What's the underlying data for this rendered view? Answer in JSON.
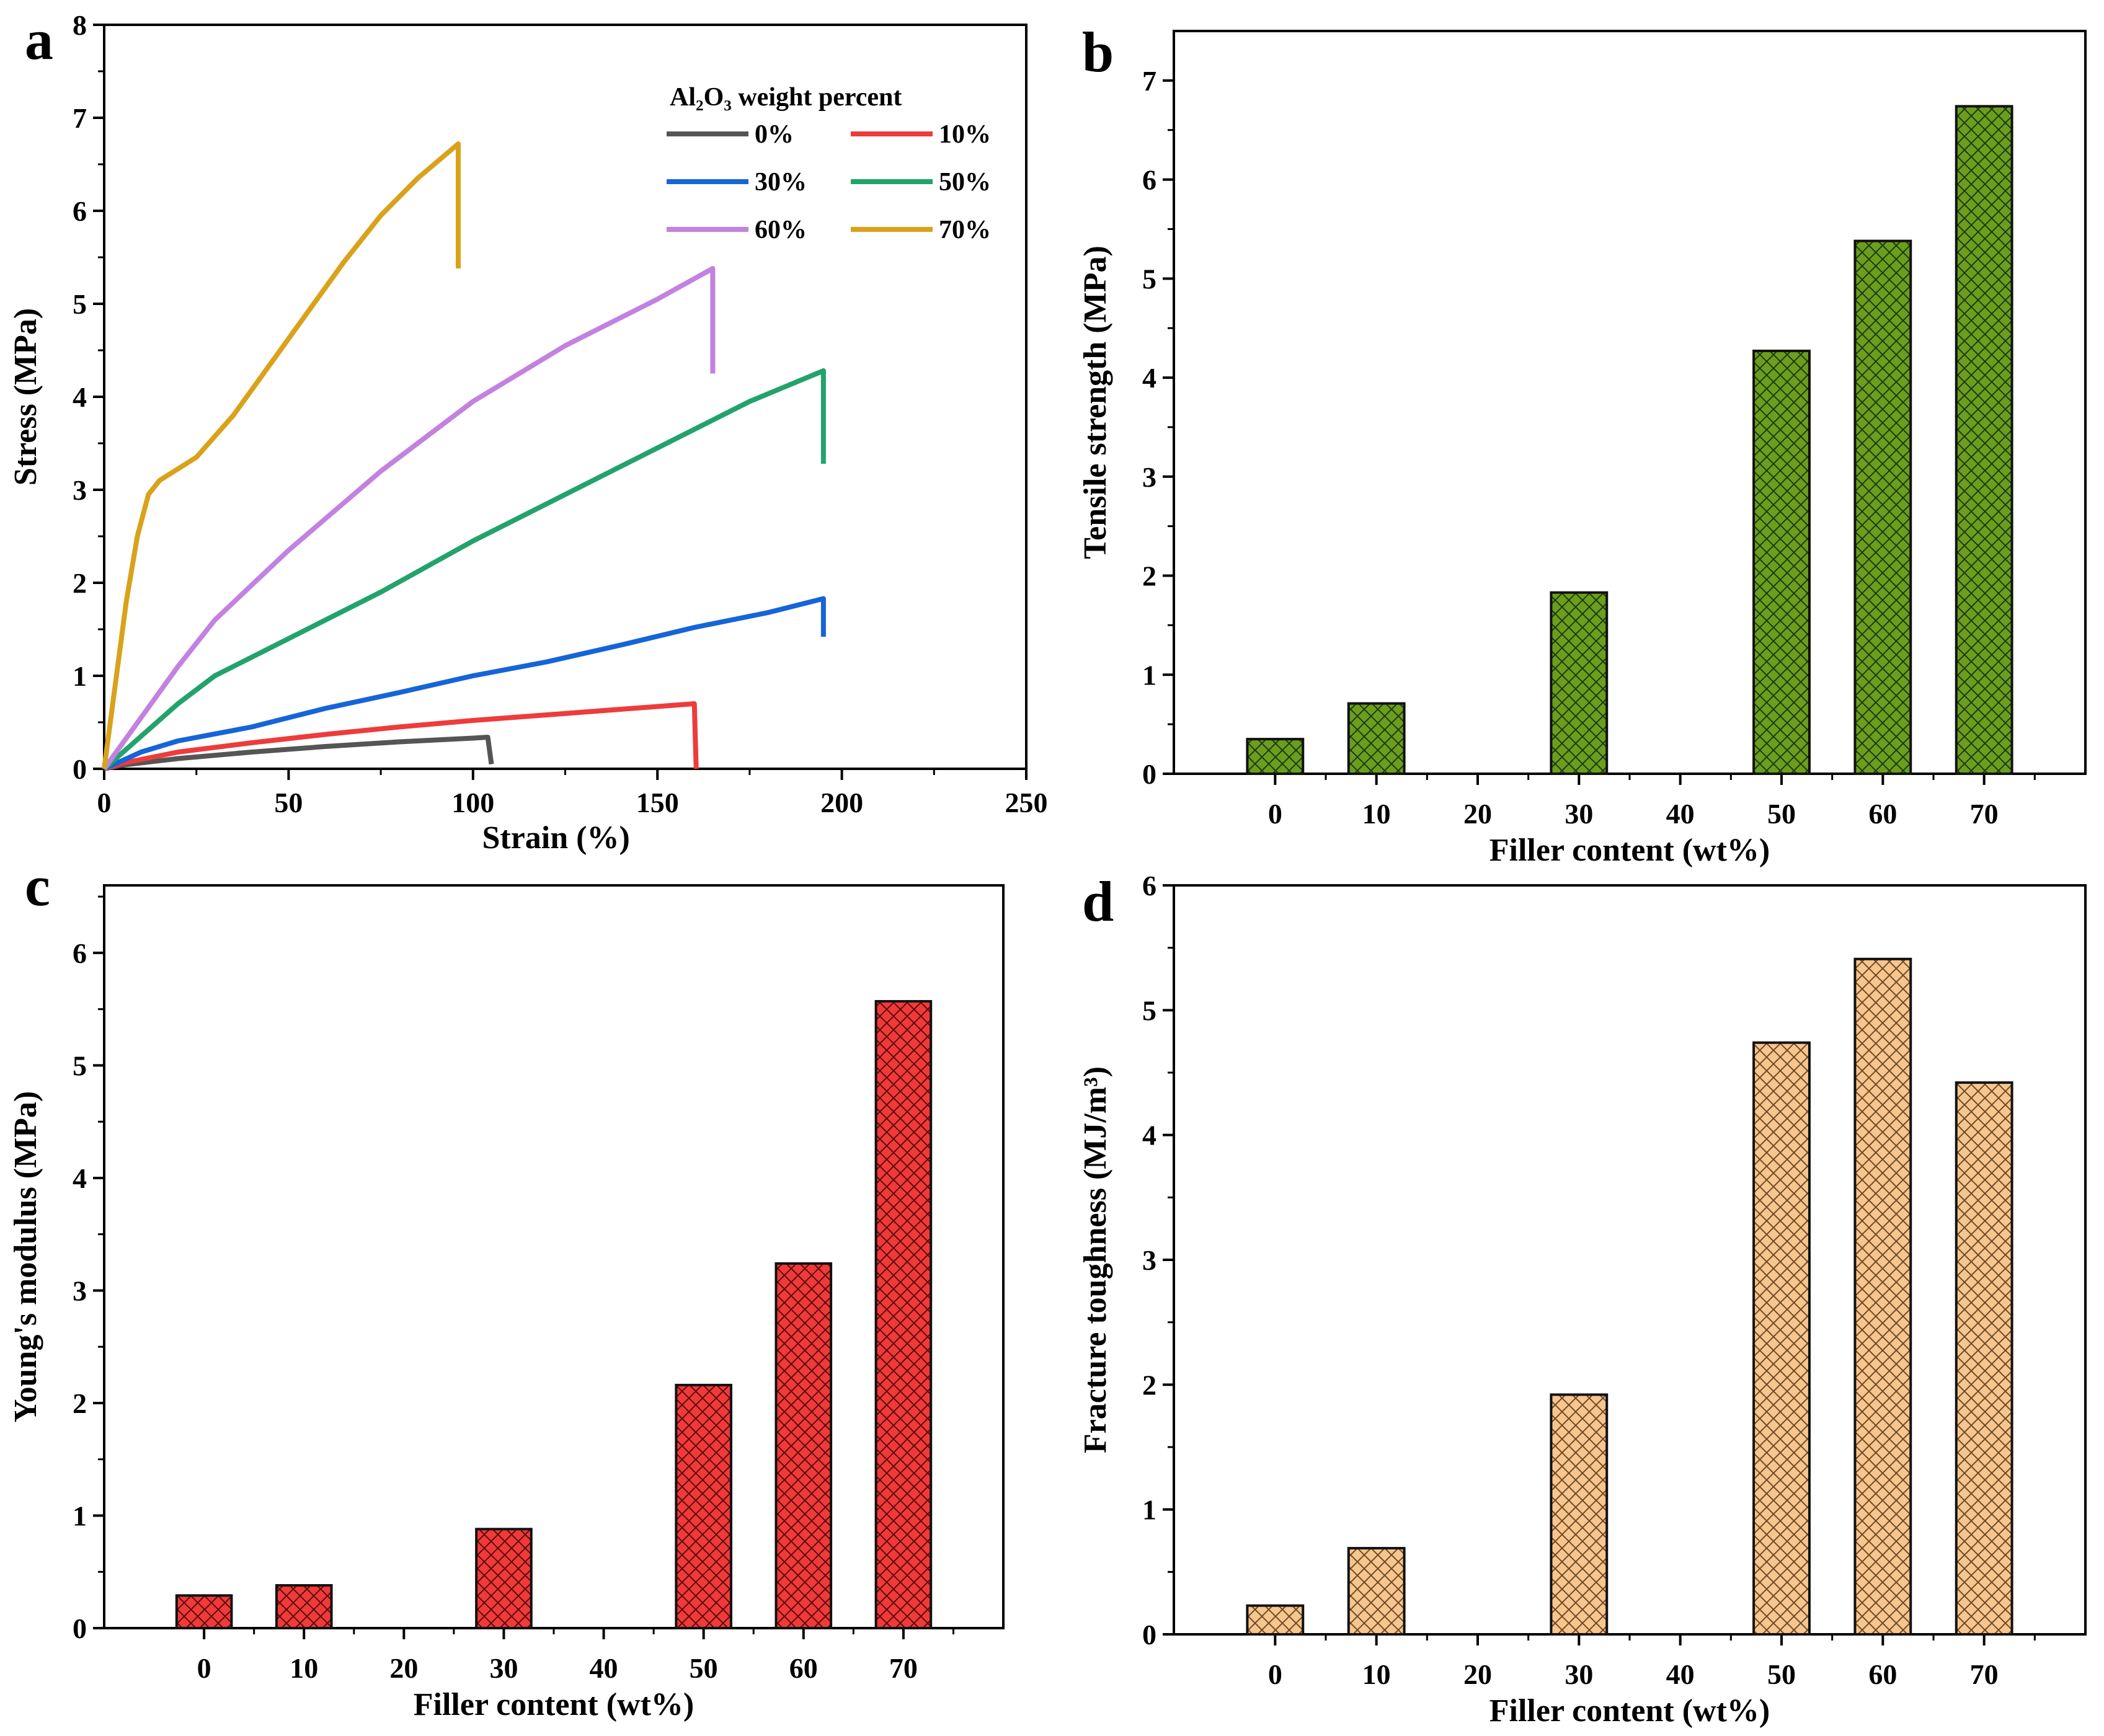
{
  "chart_data": [
    {
      "panel": "a",
      "type": "line",
      "xlabel": "Strain (%)",
      "ylabel": "Stress (MPa)",
      "xlim": [
        0,
        250
      ],
      "ylim": [
        0,
        8
      ],
      "xticks": [
        "0",
        "50",
        "100",
        "150",
        "200",
        "250"
      ],
      "yticks": [
        "0",
        "1",
        "2",
        "3",
        "4",
        "5",
        "6",
        "7",
        "8"
      ],
      "legend_title": "Al₂O₃ weight percent",
      "legend_position": "top-right",
      "series": [
        {
          "name": "0%",
          "color": "#555555",
          "points": [
            [
              0,
              0
            ],
            [
              5,
              0.04
            ],
            [
              20,
              0.11
            ],
            [
              40,
              0.18
            ],
            [
              60,
              0.24
            ],
            [
              80,
              0.29
            ],
            [
              100,
              0.33
            ],
            [
              104,
              0.34
            ],
            [
              105,
              0.05
            ]
          ]
        },
        {
          "name": "10%",
          "color": "#ee3b3b",
          "points": [
            [
              0,
              0
            ],
            [
              5,
              0.06
            ],
            [
              20,
              0.18
            ],
            [
              40,
              0.28
            ],
            [
              60,
              0.37
            ],
            [
              80,
              0.45
            ],
            [
              100,
              0.52
            ],
            [
              120,
              0.58
            ],
            [
              140,
              0.64
            ],
            [
              160,
              0.7
            ],
            [
              160.5,
              0.0
            ]
          ]
        },
        {
          "name": "30%",
          "color": "#1565d8",
          "points": [
            [
              0,
              0
            ],
            [
              10,
              0.18
            ],
            [
              20,
              0.3
            ],
            [
              40,
              0.45
            ],
            [
              60,
              0.65
            ],
            [
              80,
              0.82
            ],
            [
              100,
              1.0
            ],
            [
              120,
              1.15
            ],
            [
              140,
              1.33
            ],
            [
              160,
              1.52
            ],
            [
              180,
              1.68
            ],
            [
              195,
              1.83
            ],
            [
              195,
              1.42
            ]
          ]
        },
        {
          "name": "50%",
          "color": "#22a36b",
          "points": [
            [
              0,
              0
            ],
            [
              10,
              0.35
            ],
            [
              20,
              0.7
            ],
            [
              30,
              1.0
            ],
            [
              50,
              1.4
            ],
            [
              75,
              1.9
            ],
            [
              100,
              2.45
            ],
            [
              125,
              2.95
            ],
            [
              150,
              3.45
            ],
            [
              175,
              3.95
            ],
            [
              195,
              4.28
            ],
            [
              195,
              3.28
            ]
          ]
        },
        {
          "name": "60%",
          "color": "#c381e0",
          "points": [
            [
              0,
              0
            ],
            [
              10,
              0.55
            ],
            [
              20,
              1.1
            ],
            [
              30,
              1.6
            ],
            [
              50,
              2.35
            ],
            [
              75,
              3.2
            ],
            [
              100,
              3.95
            ],
            [
              125,
              4.55
            ],
            [
              150,
              5.05
            ],
            [
              165,
              5.38
            ],
            [
              165,
              4.25
            ]
          ]
        },
        {
          "name": "70%",
          "color": "#d9a21b",
          "points": [
            [
              0,
              0
            ],
            [
              3,
              0.9
            ],
            [
              6,
              1.8
            ],
            [
              9,
              2.5
            ],
            [
              12,
              2.95
            ],
            [
              15,
              3.1
            ],
            [
              25,
              3.35
            ],
            [
              35,
              3.8
            ],
            [
              45,
              4.35
            ],
            [
              55,
              4.9
            ],
            [
              65,
              5.45
            ],
            [
              75,
              5.95
            ],
            [
              85,
              6.35
            ],
            [
              96,
              6.72
            ],
            [
              96,
              5.38
            ]
          ]
        }
      ]
    },
    {
      "panel": "b",
      "type": "bar",
      "xlabel": "Filler content (wt%)",
      "ylabel": "Tensile strength (MPa)",
      "ylim": [
        0,
        7.5
      ],
      "yticks": [
        "0",
        "1",
        "2",
        "3",
        "4",
        "5",
        "6",
        "7"
      ],
      "categories": [
        "0",
        "10",
        "20",
        "30",
        "40",
        "50",
        "60",
        "70"
      ],
      "values": [
        0.35,
        0.71,
        null,
        1.83,
        null,
        4.27,
        5.38,
        6.74
      ],
      "color": "#6b9e1f",
      "hatch_color": "#1e3a06"
    },
    {
      "panel": "c",
      "type": "bar",
      "xlabel": "Filler content (wt%)",
      "ylabel": "Young's modulus (MPa)",
      "ylim": [
        0,
        6.6
      ],
      "yticks": [
        "0",
        "1",
        "2",
        "3",
        "4",
        "5",
        "6"
      ],
      "categories": [
        "0",
        "10",
        "20",
        "30",
        "40",
        "50",
        "60",
        "70"
      ],
      "values": [
        0.29,
        0.38,
        null,
        0.88,
        null,
        2.16,
        3.24,
        5.57
      ],
      "color": "#f03a3a",
      "hatch_color": "#5a0a0a"
    },
    {
      "panel": "d",
      "type": "bar",
      "xlabel": "Filler content (wt%)",
      "ylabel": "Fracture toughness (MJ/m³)",
      "ylim": [
        0,
        6
      ],
      "yticks": [
        "0",
        "1",
        "2",
        "3",
        "4",
        "5",
        "6"
      ],
      "categories": [
        "0",
        "10",
        "20",
        "30",
        "40",
        "50",
        "60",
        "70"
      ],
      "values": [
        0.23,
        0.69,
        null,
        1.92,
        null,
        4.74,
        5.41,
        4.42
      ],
      "color": "#f7c58e",
      "hatch_color": "#6e4a22"
    }
  ]
}
